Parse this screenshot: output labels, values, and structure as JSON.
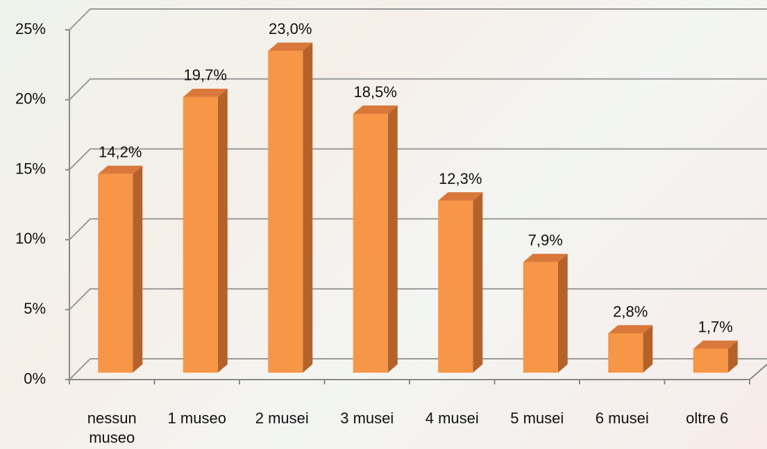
{
  "chart_data": {
    "type": "bar3d",
    "categories": [
      "nessun museo",
      "1 museo",
      "2 musei",
      "3 musei",
      "4 musei",
      "5 musei",
      "6 musei",
      "oltre 6"
    ],
    "values": [
      14.2,
      19.7,
      23.0,
      18.5,
      12.3,
      7.9,
      2.8,
      1.7
    ],
    "value_labels": [
      "14,2%",
      "19,7%",
      "23,0%",
      "18,5%",
      "12,3%",
      "7,9%",
      "2,8%",
      "1,7%"
    ],
    "color": "#f79646",
    "ylim": [
      0,
      25
    ],
    "yticks": [
      {
        "value": 0,
        "label": "0%"
      },
      {
        "value": 5,
        "label": "5%"
      },
      {
        "value": 10,
        "label": "10%"
      },
      {
        "value": 15,
        "label": "15%"
      },
      {
        "value": 20,
        "label": "20%"
      },
      {
        "value": 25,
        "label": "25%"
      }
    ],
    "grid": true
  }
}
